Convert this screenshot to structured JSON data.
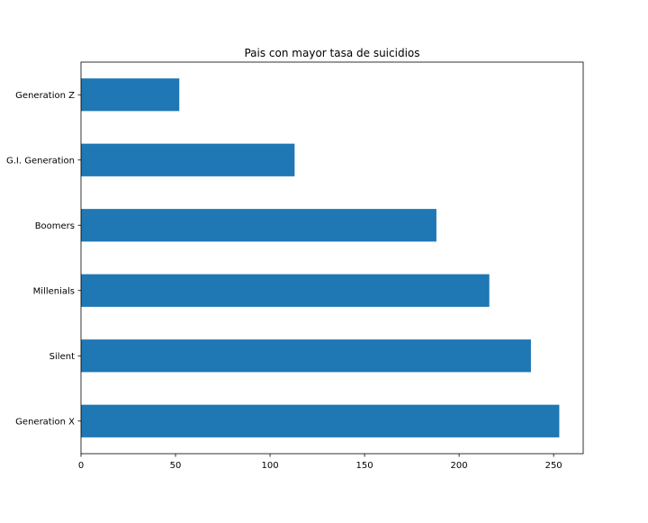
{
  "chart_data": {
    "type": "bar",
    "orientation": "horizontal",
    "title": "Pais con mayor tasa de suicidios",
    "xlabel": "",
    "ylabel": "",
    "categories": [
      "Generation Z",
      "G.I. Generation",
      "Boomers",
      "Millenials",
      "Silent",
      "Generation X"
    ],
    "values": [
      52,
      113,
      188,
      216,
      238,
      253
    ],
    "xlim": [
      0,
      265.65
    ],
    "xticks": [
      0,
      50,
      100,
      150,
      200,
      250
    ],
    "grid": false,
    "legend": "none",
    "bar_color": "#1f77b4"
  }
}
